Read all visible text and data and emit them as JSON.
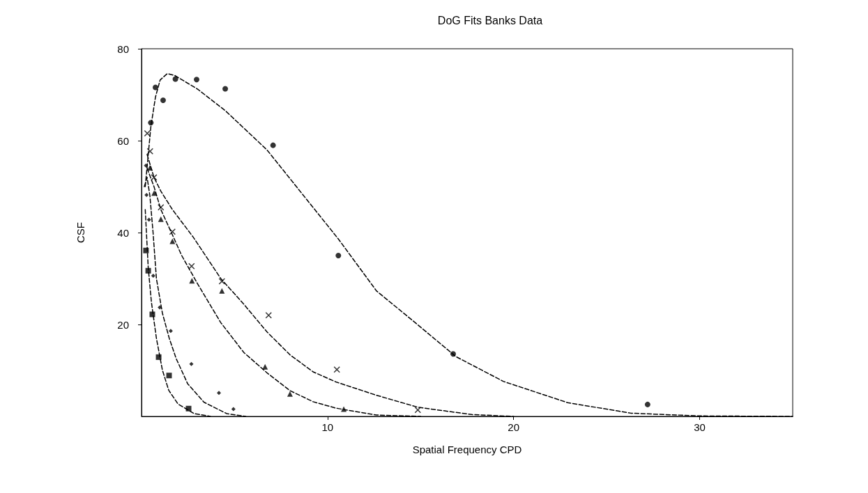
{
  "chart_data": {
    "type": "scatter",
    "title": "DoG Fits Banks Data",
    "xlabel": "Spatial Frequency CPD",
    "ylabel": "CSF",
    "xlim": [
      0,
      35
    ],
    "ylim": [
      0,
      80
    ],
    "xticks": [
      10,
      20,
      30
    ],
    "yticks": [
      20,
      40,
      60,
      80
    ],
    "grid": false,
    "series": [
      {
        "marker": "circle",
        "color": "#000000",
        "x": [
          0.5,
          0.75,
          1.16,
          1.82,
          2.96,
          4.5,
          7.07,
          10.58,
          16.75,
          27.2
        ],
        "values": [
          63.9,
          71.6,
          68.8,
          73.4,
          73.3,
          71.3,
          59,
          35,
          13.6,
          2.6
        ]
      },
      {
        "marker": "cross",
        "color": "#000000",
        "x": [
          0.31,
          0.46,
          0.67,
          1.04,
          1.66,
          2.69,
          4.32,
          6.83,
          10.5,
          14.85
        ],
        "values": [
          61.6,
          57.7,
          52,
          45.5,
          40.2,
          32.7,
          29.4,
          22,
          10.2,
          1.4
        ]
      },
      {
        "marker": "triangle",
        "color": "#000000",
        "x": [
          0.45,
          0.68,
          1.04,
          1.66,
          2.71,
          4.32,
          6.64,
          7.98,
          10.87
        ],
        "values": [
          54.1,
          48.6,
          42.9,
          38.1,
          29.5,
          27.3,
          10.8,
          4.9,
          1.6
        ]
      },
      {
        "marker": "diamond",
        "color": "#000000",
        "x": [
          0.24,
          0.27,
          0.4,
          0.63,
          0.98,
          1.57,
          2.68,
          4.16,
          4.94
        ],
        "values": [
          54.6,
          48.2,
          42.8,
          30.6,
          23.7,
          18.6,
          11.4,
          5.1,
          1.6
        ]
      },
      {
        "marker": "square",
        "color": "#000000",
        "x": [
          0.24,
          0.36,
          0.58,
          0.92,
          1.48,
          2.53
        ],
        "values": [
          36.1,
          31.7,
          22.2,
          12.9,
          8.9,
          1.7
        ]
      },
      {
        "type": "line",
        "marker": "none",
        "line_style": "dashed",
        "color": "#000000",
        "x": [
          0.2,
          0.5,
          0.75,
          1.0,
          1.39,
          1.78,
          3.02,
          4.51,
          6.74,
          10.58,
          12.63,
          14.68,
          16.9,
          19.46,
          22.9,
          26.3,
          30,
          35
        ],
        "values": [
          50,
          63,
          69.5,
          73.2,
          74.6,
          74.2,
          71.2,
          66.5,
          58,
          38.6,
          27.3,
          20.5,
          13,
          7.6,
          3,
          0.7,
          0.1,
          0
        ]
      },
      {
        "type": "line",
        "marker": "none",
        "line_style": "dashed",
        "color": "#000000",
        "x": [
          0.3,
          0.67,
          1.04,
          1.66,
          2.78,
          4.26,
          5.5,
          6.74,
          7.98,
          9.22,
          10.45,
          12.63,
          14.85,
          17.75,
          20
        ],
        "values": [
          57,
          52,
          49,
          45,
          39,
          30,
          24.4,
          18.4,
          13.4,
          9.7,
          7.5,
          4.6,
          2,
          0.4,
          0
        ]
      },
      {
        "type": "line",
        "marker": "none",
        "line_style": "dashed",
        "color": "#000000",
        "x": [
          0.3,
          0.67,
          1.04,
          1.66,
          2.16,
          3.02,
          4.26,
          5.5,
          6.74,
          7.98,
          9.22,
          10.45,
          12.63,
          15
        ],
        "values": [
          54,
          50,
          45,
          39.5,
          35,
          28.8,
          20.4,
          13.9,
          9.5,
          5.6,
          3.2,
          1.8,
          0.3,
          0
        ]
      },
      {
        "type": "line",
        "marker": "none",
        "line_style": "dashed",
        "color": "#000000",
        "x": [
          0.15,
          0.3,
          0.45,
          0.62,
          0.8,
          1.12,
          1.49,
          1.86,
          2.48,
          3.35,
          4.58,
          5.6
        ],
        "values": [
          50,
          52,
          48,
          40,
          30,
          22.5,
          17,
          12.6,
          7.1,
          3.1,
          0.6,
          0
        ]
      },
      {
        "type": "line",
        "marker": "none",
        "line_style": "dashed",
        "color": "#000000",
        "x": [
          0.2,
          0.36,
          0.53,
          0.8,
          1.12,
          1.46,
          1.96,
          2.83,
          3.7
        ],
        "values": [
          45,
          32.4,
          24.9,
          17,
          10.1,
          5.7,
          2.7,
          0.6,
          0
        ]
      }
    ]
  }
}
